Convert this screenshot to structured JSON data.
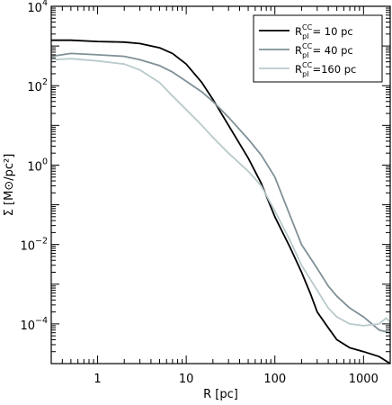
{
  "chart_data": {
    "type": "line",
    "xlabel": "R [pc]",
    "ylabel": "Σ [M⊙/pc²]",
    "x_scale": "log",
    "y_scale": "log",
    "xlim": [
      0.3,
      2000
    ],
    "ylim": [
      1e-05,
      10000
    ],
    "x_ticks": [
      {
        "value": 1,
        "label": "1"
      },
      {
        "value": 10,
        "label": "10"
      },
      {
        "value": 100,
        "label": "100"
      },
      {
        "value": 1000,
        "label": "1000"
      }
    ],
    "y_ticks": [
      {
        "value": 0.0001,
        "base": "10",
        "exp": "−4"
      },
      {
        "value": 0.01,
        "base": "10",
        "exp": "−2"
      },
      {
        "value": 1,
        "base": "10",
        "exp": "0"
      },
      {
        "value": 100,
        "base": "10",
        "exp": "2"
      },
      {
        "value": 10000,
        "base": "10",
        "exp": "4"
      }
    ],
    "grid": false,
    "legend_position": "top-right",
    "series": [
      {
        "name": "R_pl^CC = 10 pc",
        "legend_main": "R",
        "legend_sub": "pl",
        "legend_sup": "CC",
        "legend_value": "= 10 pc",
        "color": "#000000",
        "x": [
          0.3,
          0.5,
          1,
          2,
          3,
          5,
          7,
          10,
          15,
          20,
          30,
          50,
          70,
          100,
          150,
          200,
          250,
          300,
          400,
          500,
          700,
          1000,
          1500,
          2000
        ],
        "y": [
          1400,
          1400,
          1300,
          1250,
          1150,
          900,
          650,
          350,
          120,
          45,
          10,
          1.5,
          0.35,
          0.05,
          0.008,
          0.002,
          0.0006,
          0.0002,
          8e-05,
          4e-05,
          2.5e-05,
          2e-05,
          1.5e-05,
          1e-05
        ]
      },
      {
        "name": "R_pl^CC = 40 pc",
        "legend_main": "R",
        "legend_sub": "pl",
        "legend_sup": "CC",
        "legend_value": "= 40 pc",
        "color": "#7f9096",
        "x": [
          0.3,
          0.5,
          1,
          2,
          3,
          5,
          7,
          10,
          15,
          20,
          30,
          50,
          70,
          100,
          150,
          200,
          300,
          400,
          500,
          700,
          1000,
          1500,
          2000
        ],
        "y": [
          550,
          650,
          600,
          550,
          450,
          320,
          220,
          130,
          70,
          40,
          16,
          4.5,
          1.8,
          0.5,
          0.05,
          0.01,
          0.0025,
          0.0009,
          0.0005,
          0.00025,
          0.00015,
          7e-05,
          6e-05
        ]
      },
      {
        "name": "R_pl^CC = 160 pc",
        "legend_main": "R",
        "legend_sub": "pl",
        "legend_sup": "CC",
        "legend_value": "=160 pc",
        "color": "#b9c9cc",
        "x": [
          0.3,
          0.5,
          1,
          2,
          3,
          5,
          7,
          10,
          15,
          20,
          30,
          50,
          70,
          100,
          150,
          200,
          300,
          400,
          500,
          700,
          1000,
          1500,
          1800,
          2000
        ],
        "y": [
          450,
          480,
          420,
          350,
          250,
          120,
          55,
          25,
          10,
          5,
          2,
          0.7,
          0.3,
          0.07,
          0.012,
          0.003,
          0.0007,
          0.00025,
          0.00015,
          0.0001,
          9e-05,
          0.0001,
          0.00014,
          0.00011
        ]
      }
    ]
  }
}
